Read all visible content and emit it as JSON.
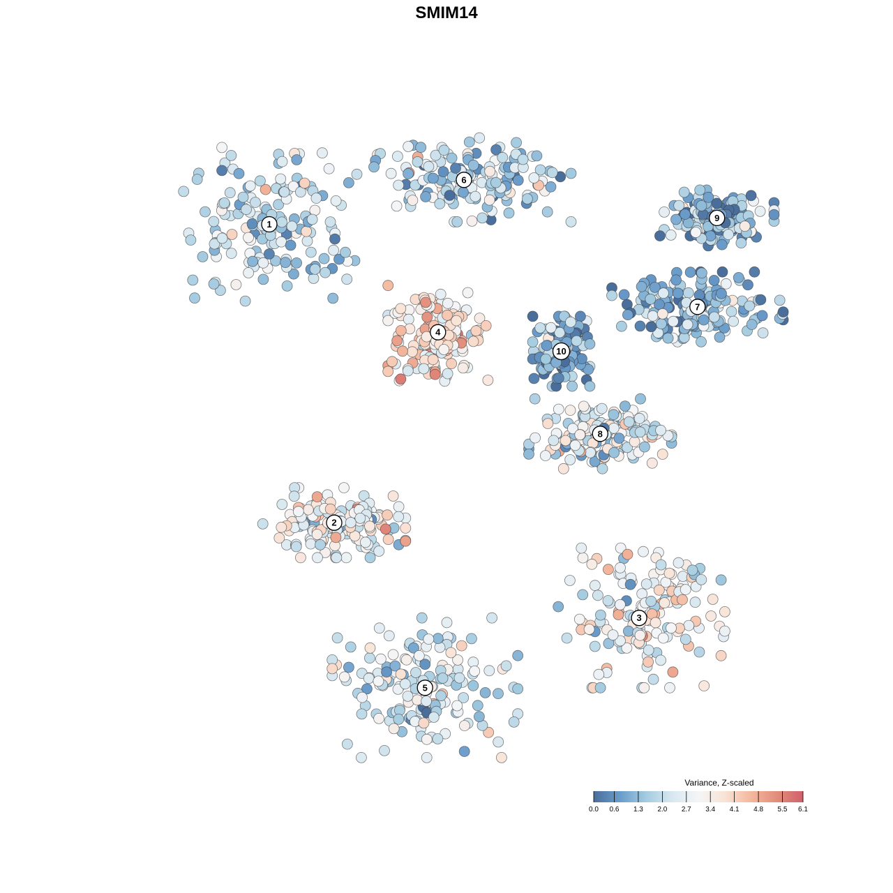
{
  "chart_data": {
    "type": "scatter",
    "title": "SMIM14",
    "xlabel": "",
    "ylabel": "",
    "grid": false,
    "legend_position": "bottom-right",
    "colorbar": {
      "title": "Variance, Z-scaled",
      "min": 0.0,
      "max": 6.1,
      "ticks": [
        "0.0",
        "0.6",
        "1.3",
        "2.0",
        "2.7",
        "3.4",
        "4.1",
        "4.8",
        "5.5",
        "6.1"
      ],
      "colors": [
        "#4a6e9b",
        "#6a9ccb",
        "#a4cbe0",
        "#d8e8f0",
        "#f4f5f7",
        "#f9e3d6",
        "#f4b89e",
        "#e28d7c",
        "#d1606a"
      ]
    },
    "clusters": [
      {
        "label": "1",
        "x": 0.2,
        "y": 0.85,
        "spread_x": 0.12,
        "spread_y": 0.11,
        "mean": 2.0
      },
      {
        "label": "2",
        "x": 0.3,
        "y": 0.38,
        "spread_x": 0.1,
        "spread_y": 0.05,
        "mean": 2.8
      },
      {
        "label": "3",
        "x": 0.77,
        "y": 0.23,
        "spread_x": 0.12,
        "spread_y": 0.1,
        "mean": 2.9
      },
      {
        "label": "4",
        "x": 0.46,
        "y": 0.68,
        "spread_x": 0.07,
        "spread_y": 0.07,
        "mean": 3.7
      },
      {
        "label": "5",
        "x": 0.44,
        "y": 0.12,
        "spread_x": 0.13,
        "spread_y": 0.1,
        "mean": 2.3
      },
      {
        "label": "6",
        "x": 0.5,
        "y": 0.92,
        "spread_x": 0.15,
        "spread_y": 0.06,
        "mean": 1.8
      },
      {
        "label": "7",
        "x": 0.86,
        "y": 0.72,
        "spread_x": 0.12,
        "spread_y": 0.05,
        "mean": 1.3
      },
      {
        "label": "8",
        "x": 0.71,
        "y": 0.52,
        "spread_x": 0.1,
        "spread_y": 0.05,
        "mean": 2.6
      },
      {
        "label": "9",
        "x": 0.89,
        "y": 0.86,
        "spread_x": 0.08,
        "spread_y": 0.04,
        "mean": 1.2
      },
      {
        "label": "10",
        "x": 0.65,
        "y": 0.65,
        "spread_x": 0.04,
        "spread_y": 0.05,
        "mean": 1.1
      }
    ]
  }
}
